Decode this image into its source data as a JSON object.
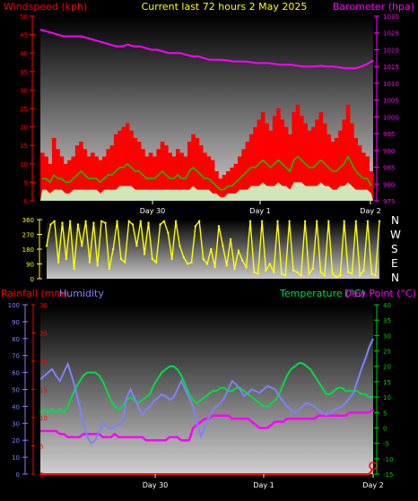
{
  "header": {
    "left_title": "Windspeed (kph)",
    "center_title": "Current last 72 hours 2 May 2025",
    "right_title": "Barometer (hpa)"
  },
  "lower_header": {
    "rainfall": "Rainfall (mm)",
    "humidity": "Humidity",
    "temperature": "Temperature (°C)",
    "dewpoint": "Dew Point (°C)"
  },
  "compass": [
    "N",
    "W",
    "S",
    "E",
    "N"
  ],
  "colors": {
    "windspeed": "#ff0000",
    "gust": "#ff0000",
    "wind_avg": "#00cc00",
    "wind_low": "#ccffcc",
    "barometer": "#ff00ff",
    "direction": "#ffff00",
    "rainfall": "#ff0000",
    "humidity": "#8080ff",
    "temperature": "#00dd44",
    "dewpoint": "#ff00ff",
    "axis_left_upper": "#ff0000",
    "axis_right_upper": "#ff00ff",
    "axis_right_lower": "#00cc00"
  },
  "chart_data": [
    {
      "type": "line",
      "name": "wind-barometer",
      "x_labels": [
        "Day 30",
        "Day 1",
        "Day 2"
      ],
      "y_left": {
        "label": "Windspeed (kph)",
        "ylim": [
          0,
          50
        ],
        "ticks": [
          0,
          5,
          10,
          15,
          20,
          25,
          30,
          35,
          40,
          45,
          50
        ]
      },
      "y_right": {
        "label": "Barometer (hpa)",
        "ylim": [
          975,
          1030
        ],
        "ticks": [
          975,
          980,
          985,
          990,
          995,
          1000,
          1005,
          1010,
          1015,
          1020,
          1025,
          1030
        ]
      },
      "grid": false,
      "series": [
        {
          "name": "Windspeed (kph)",
          "axis": "left",
          "style": "bars",
          "values": [
            13,
            12,
            10,
            17,
            14,
            12,
            10,
            11,
            12,
            15,
            16,
            14,
            12,
            13,
            12,
            11,
            12,
            14,
            15,
            18,
            19,
            20,
            21,
            19,
            17,
            16,
            14,
            12,
            13,
            12,
            14,
            16,
            15,
            13,
            12,
            14,
            13,
            12,
            16,
            18,
            17,
            15,
            13,
            12,
            11,
            8,
            6,
            7,
            8,
            9,
            10,
            12,
            14,
            16,
            18,
            20,
            22,
            24,
            21,
            19,
            23,
            25,
            22,
            20,
            18,
            24,
            26,
            23,
            21,
            19,
            20,
            22,
            24,
            21,
            18,
            16,
            17,
            19,
            22,
            26,
            21,
            17,
            15,
            13,
            12,
            8
          ]
        },
        {
          "name": "avg",
          "axis": "left",
          "style": "line",
          "values": [
            6,
            6,
            5,
            7,
            6,
            6,
            5,
            5,
            6,
            7,
            8,
            7,
            6,
            6,
            6,
            5,
            6,
            7,
            7,
            8,
            9,
            9,
            10,
            9,
            8,
            8,
            7,
            6,
            6,
            6,
            7,
            8,
            7,
            6,
            6,
            7,
            6,
            6,
            8,
            9,
            8,
            7,
            6,
            6,
            5,
            4,
            3,
            3,
            4,
            4,
            5,
            6,
            7,
            8,
            9,
            9,
            10,
            11,
            10,
            9,
            10,
            11,
            10,
            9,
            8,
            11,
            12,
            11,
            10,
            9,
            9,
            10,
            11,
            10,
            9,
            8,
            8,
            9,
            10,
            12,
            10,
            8,
            7,
            6,
            6,
            4
          ]
        },
        {
          "name": "low",
          "axis": "left",
          "style": "fill",
          "values": [
            3,
            3,
            2,
            3,
            3,
            3,
            2,
            2,
            3,
            3,
            3,
            3,
            3,
            3,
            3,
            2,
            3,
            3,
            3,
            3,
            4,
            4,
            4,
            4,
            3,
            3,
            3,
            3,
            3,
            3,
            3,
            3,
            3,
            3,
            3,
            3,
            3,
            3,
            3,
            4,
            3,
            3,
            3,
            3,
            2,
            2,
            1,
            1,
            2,
            2,
            2,
            3,
            3,
            3,
            4,
            4,
            4,
            5,
            4,
            4,
            4,
            5,
            4,
            4,
            3,
            5,
            5,
            5,
            4,
            4,
            4,
            4,
            5,
            4,
            4,
            3,
            3,
            4,
            4,
            5,
            4,
            3,
            3,
            3,
            3,
            2
          ]
        },
        {
          "name": "Barometer (hpa)",
          "axis": "right",
          "style": "line",
          "values": [
            1026,
            1025.5,
            1025,
            1024.5,
            1024,
            1024,
            1024,
            1024,
            1023.5,
            1023,
            1022.5,
            1022,
            1021.5,
            1021,
            1021,
            1021.5,
            1021,
            1021,
            1020.5,
            1020,
            1020,
            1019.5,
            1019,
            1019,
            1019,
            1018.5,
            1018,
            1018,
            1017.5,
            1017,
            1017,
            1017,
            1016.8,
            1016.5,
            1016.5,
            1016.5,
            1016.3,
            1016,
            1016,
            1016,
            1015.8,
            1015.5,
            1015.5,
            1015.5,
            1015.2,
            1015,
            1015,
            1015,
            1015.2,
            1015,
            1015,
            1014.8,
            1014.5,
            1014.5,
            1014.5,
            1015,
            1015.8,
            1016.8
          ]
        }
      ]
    },
    {
      "type": "scatter",
      "name": "wind-direction",
      "ylim": [
        0,
        360
      ],
      "ticks": [
        0,
        90,
        180,
        270,
        360
      ],
      "series": [
        {
          "name": "direction",
          "values": [
            200,
            330,
            350,
            100,
            340,
            120,
            350,
            60,
            330,
            200,
            350,
            100,
            340,
            80,
            350,
            340,
            60,
            180,
            350,
            120,
            100,
            350,
            330,
            200,
            350,
            150,
            340,
            120,
            100,
            330,
            350,
            280,
            120,
            350,
            200,
            130,
            90,
            100,
            320,
            350,
            120,
            90,
            180,
            70,
            320,
            200,
            80,
            240,
            60,
            170,
            110,
            70,
            350,
            40,
            30,
            350,
            50,
            90,
            40,
            350,
            30,
            20,
            350,
            50,
            40,
            20,
            350,
            30,
            60,
            350,
            40,
            20,
            350,
            30,
            10,
            20,
            350,
            40,
            30,
            350,
            20,
            50,
            350,
            30,
            20,
            350
          ]
        }
      ]
    },
    {
      "type": "line",
      "name": "rain-humidity-temperature",
      "x_labels": [
        "Day 30",
        "Day 1",
        "Day 2"
      ],
      "y_humidity": {
        "label": "Humidity",
        "ylim": [
          0,
          100
        ],
        "ticks": [
          0,
          10,
          20,
          30,
          40,
          50,
          60,
          70,
          80,
          90,
          100
        ]
      },
      "y_rain": {
        "label": "Rainfall (mm)",
        "ylim": [
          0,
          30
        ],
        "ticks": [
          0,
          5,
          10,
          15,
          20,
          25,
          30
        ]
      },
      "y_temp": {
        "label": "Temperature (°C)",
        "ylim": [
          -15,
          40
        ],
        "ticks": [
          -15,
          -10,
          -5,
          0,
          5,
          10,
          15,
          20,
          25,
          30,
          35,
          40
        ]
      },
      "grid": false,
      "series": [
        {
          "name": "Humidity",
          "axis": "humidity",
          "values": [
            56,
            58,
            60,
            62,
            58,
            55,
            60,
            65,
            58,
            50,
            40,
            30,
            22,
            18,
            20,
            25,
            30,
            28,
            27,
            28,
            29,
            30,
            45,
            50,
            45,
            40,
            35,
            38,
            40,
            43,
            45,
            47,
            46,
            44,
            45,
            50,
            55,
            50,
            45,
            40,
            30,
            22,
            28,
            33,
            38,
            40,
            42,
            45,
            50,
            55,
            53,
            50,
            46,
            48,
            50,
            49,
            48,
            50,
            52,
            51,
            50,
            46,
            43,
            40,
            38,
            36,
            38,
            40,
            42,
            41,
            40,
            38,
            36,
            35,
            36,
            38,
            39,
            40,
            42,
            45,
            48,
            55,
            62,
            68,
            75,
            80
          ]
        },
        {
          "name": "Rainfall (mm)",
          "axis": "rain",
          "values": [
            0,
            0,
            0,
            0,
            0,
            0,
            0,
            0,
            0,
            0,
            0,
            0,
            0,
            0,
            0,
            0,
            0,
            0,
            0,
            0,
            0,
            0,
            0,
            0,
            0,
            0,
            0,
            0,
            0,
            0,
            0,
            0,
            0,
            0,
            0,
            0,
            0,
            0,
            0,
            0,
            0,
            0,
            0,
            0,
            0,
            0,
            0,
            0,
            0,
            0,
            0,
            0,
            0,
            0,
            0,
            0,
            0,
            0,
            0,
            0,
            0,
            0,
            0,
            0,
            0,
            0,
            0,
            0,
            0,
            0,
            0,
            0,
            0,
            0,
            0,
            0,
            0,
            0,
            0,
            0,
            0,
            0,
            0,
            0,
            0,
            1
          ]
        },
        {
          "name": "Temperature (°C)",
          "axis": "temp",
          "values": [
            5,
            6,
            5,
            6,
            5,
            6,
            5,
            7,
            10,
            13,
            15,
            17,
            18,
            18,
            18,
            17,
            15,
            12,
            9,
            7,
            6,
            7,
            9,
            10,
            9,
            8,
            9,
            10,
            11,
            14,
            16,
            18,
            19,
            20,
            20,
            19,
            17,
            14,
            11,
            9,
            8,
            9,
            10,
            11,
            12,
            12,
            13,
            13,
            12,
            12,
            13,
            13,
            12,
            11,
            10,
            9,
            8,
            7,
            7,
            8,
            9,
            11,
            14,
            17,
            19,
            20,
            21,
            21,
            20,
            19,
            17,
            15,
            13,
            11,
            11,
            12,
            13,
            13,
            12,
            12,
            12,
            12,
            11,
            11,
            10,
            10
          ]
        },
        {
          "name": "Dew Point (°C)",
          "axis": "temp",
          "values": [
            -1,
            -1,
            -1,
            -1,
            -1,
            -2,
            -2,
            -3,
            -3,
            -3,
            -3,
            -2,
            -2,
            -2,
            -2,
            -2,
            -3,
            -3,
            -3,
            -2,
            -3,
            -3,
            -3,
            -3,
            -3,
            -3,
            -3,
            -4,
            -4,
            -4,
            -4,
            -4,
            -4,
            -3,
            -3,
            -3,
            -4,
            -4,
            -4,
            0,
            1,
            2,
            3,
            3,
            4,
            4,
            4,
            4,
            4,
            3,
            3,
            3,
            3,
            3,
            2,
            1,
            0,
            0,
            0,
            1,
            2,
            2,
            2,
            3,
            3,
            3,
            3,
            3,
            3,
            3,
            3,
            4,
            4,
            4,
            4,
            4,
            4,
            4,
            4,
            5,
            5,
            5,
            5,
            5,
            5,
            6
          ]
        }
      ]
    }
  ]
}
